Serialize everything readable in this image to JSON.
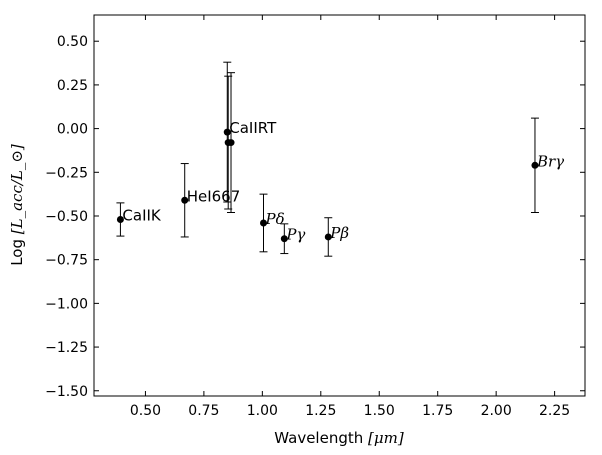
{
  "chart_data": {
    "type": "scatter",
    "xlabel": "Wavelength",
    "xlabel_unit": "[μm]",
    "ylabel_prefix": "Log ",
    "ylabel_math": "[L_acc/L_⊙]",
    "xlim": [
      0.28,
      2.38
    ],
    "ylim": [
      -1.53,
      0.65
    ],
    "x_ticks": [
      "0.50",
      "0.75",
      "1.00",
      "1.25",
      "1.50",
      "1.75",
      "2.00",
      "2.25"
    ],
    "x_tick_values": [
      0.5,
      0.75,
      1.0,
      1.25,
      1.5,
      1.75,
      2.0,
      2.25
    ],
    "y_ticks": [
      "0.50",
      "0.25",
      "0.00",
      "−0.25",
      "−0.50",
      "−0.75",
      "−1.00",
      "−1.25",
      "−1.50"
    ],
    "y_tick_values": [
      0.5,
      0.25,
      0.0,
      -0.25,
      -0.5,
      -0.75,
      -1.0,
      -1.25,
      -1.5
    ],
    "grid": false,
    "points": [
      {
        "label": "CaIIK",
        "math": false,
        "x": 0.393,
        "y": -0.52,
        "err": 0.095
      },
      {
        "label": "HeI667",
        "math": false,
        "x": 0.668,
        "y": -0.41,
        "err": 0.21
      },
      {
        "label": "CaIIRT",
        "math": false,
        "x": 0.85,
        "y": -0.02,
        "err": 0.4
      },
      {
        "label": "",
        "math": false,
        "x": 0.854,
        "y": -0.08,
        "err": 0.38
      },
      {
        "label": "",
        "math": false,
        "x": 0.866,
        "y": -0.08,
        "err": 0.4
      },
      {
        "label": "Pδ",
        "math": true,
        "x": 1.005,
        "y": -0.54,
        "err": 0.165
      },
      {
        "label": "Pγ",
        "math": true,
        "x": 1.094,
        "y": -0.63,
        "err": 0.085
      },
      {
        "label": "Pβ",
        "math": true,
        "x": 1.282,
        "y": -0.62,
        "err": 0.11
      },
      {
        "label": "Brγ",
        "math": true,
        "x": 2.166,
        "y": -0.21,
        "err": 0.27
      }
    ]
  }
}
